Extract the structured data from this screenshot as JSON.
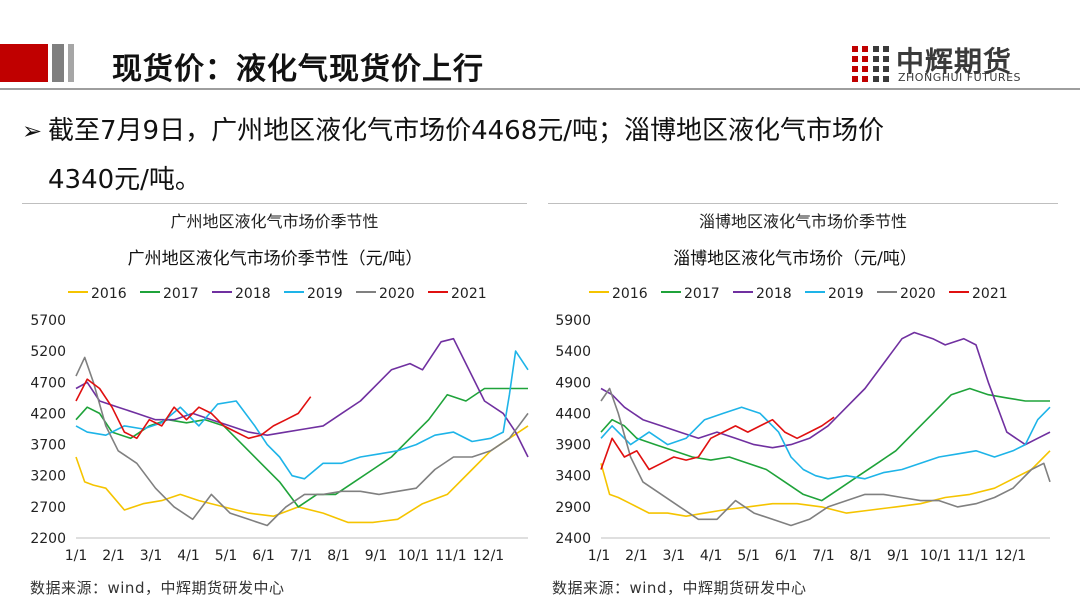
{
  "header": {
    "title": "现货价：液化气现货价上行",
    "logo_cn": "中辉期货",
    "logo_en": "ZHONGHUI FUTURES"
  },
  "bullet": {
    "line1": "截至7月9日，广州地区液化气市场价4468元/吨；淄博地区液化气市场价",
    "line2": "4340元/吨。"
  },
  "panels": [
    {
      "title": "广州地区液化气市场价季节性",
      "source": "数据来源：wind，中辉期货研发中心"
    },
    {
      "title": "淄博地区液化气市场价季节性",
      "source": "数据来源：wind，中辉期货研发中心"
    }
  ],
  "colors": {
    "2016": "#f5c400",
    "2017": "#1fa33a",
    "2018": "#7030a0",
    "2019": "#1eb4e8",
    "2020": "#808080",
    "2021": "#e01010"
  },
  "chart_data": [
    {
      "type": "line",
      "title": "广州地区液化气市场价季节性（元/吨）",
      "ylim": [
        2200,
        5700
      ],
      "yticks": [
        2200,
        2700,
        3200,
        3700,
        4200,
        4700,
        5200,
        5700
      ],
      "xticks": [
        "1/1",
        "2/1",
        "3/1",
        "4/1",
        "5/1",
        "6/1",
        "7/1",
        "8/1",
        "9/1",
        "10/1",
        "11/1",
        "12/1"
      ],
      "series": [
        {
          "name": "2016",
          "x": [
            1,
            8,
            15,
            25,
            40,
            55,
            70,
            85,
            100,
            120,
            140,
            160,
            180,
            200,
            220,
            240,
            260,
            280,
            300,
            320,
            335,
            350,
            365
          ],
          "values": [
            3500,
            3100,
            3050,
            3000,
            2650,
            2750,
            2800,
            2900,
            2800,
            2700,
            2600,
            2550,
            2700,
            2600,
            2450,
            2450,
            2500,
            2750,
            2900,
            3300,
            3600,
            3800,
            4000
          ]
        },
        {
          "name": "2017",
          "x": [
            1,
            10,
            20,
            30,
            45,
            60,
            75,
            90,
            105,
            120,
            135,
            150,
            165,
            180,
            195,
            210,
            225,
            240,
            255,
            270,
            285,
            300,
            315,
            330,
            345,
            365
          ],
          "values": [
            4100,
            4300,
            4200,
            3900,
            3800,
            4000,
            4100,
            4050,
            4100,
            4000,
            3700,
            3400,
            3100,
            2700,
            2900,
            2900,
            3100,
            3300,
            3500,
            3800,
            4100,
            4500,
            4400,
            4600,
            4600,
            4600
          ]
        },
        {
          "name": "2018",
          "x": [
            1,
            10,
            20,
            35,
            50,
            65,
            80,
            95,
            110,
            125,
            140,
            155,
            170,
            185,
            200,
            215,
            230,
            245,
            255,
            270,
            280,
            295,
            305,
            315,
            330,
            345,
            355,
            365
          ],
          "values": [
            4600,
            4700,
            4400,
            4300,
            4200,
            4100,
            4100,
            4200,
            4100,
            4000,
            3900,
            3850,
            3900,
            3950,
            4000,
            4200,
            4400,
            4700,
            4900,
            5000,
            4900,
            5350,
            5400,
            5000,
            4400,
            4200,
            3900,
            3500
          ]
        },
        {
          "name": "2019",
          "x": [
            1,
            10,
            25,
            40,
            55,
            70,
            85,
            100,
            115,
            130,
            145,
            155,
            165,
            175,
            185,
            200,
            215,
            230,
            245,
            260,
            275,
            290,
            305,
            320,
            335,
            345,
            350,
            355,
            365
          ],
          "values": [
            4000,
            3900,
            3850,
            4000,
            3950,
            4050,
            4300,
            4000,
            4350,
            4400,
            4000,
            3700,
            3500,
            3200,
            3150,
            3400,
            3400,
            3500,
            3550,
            3600,
            3700,
            3850,
            3900,
            3750,
            3800,
            3900,
            4500,
            5200,
            4900
          ]
        },
        {
          "name": "2020",
          "x": [
            1,
            8,
            15,
            25,
            35,
            50,
            65,
            80,
            95,
            110,
            125,
            140,
            155,
            170,
            185,
            200,
            215,
            230,
            245,
            260,
            275,
            290,
            305,
            320,
            335,
            350,
            365
          ],
          "values": [
            4800,
            5100,
            4700,
            4000,
            3600,
            3400,
            3000,
            2700,
            2500,
            2900,
            2600,
            2500,
            2400,
            2700,
            2900,
            2900,
            2950,
            2950,
            2900,
            2950,
            3000,
            3300,
            3500,
            3500,
            3600,
            3800,
            4200
          ]
        },
        {
          "name": "2021",
          "x": [
            1,
            10,
            20,
            30,
            40,
            50,
            60,
            70,
            80,
            90,
            100,
            110,
            120,
            130,
            140,
            150,
            160,
            170,
            180,
            190
          ],
          "values": [
            4400,
            4750,
            4600,
            4300,
            3900,
            3800,
            4100,
            4000,
            4300,
            4100,
            4300,
            4200,
            4000,
            3900,
            3800,
            3850,
            4000,
            4100,
            4200,
            4468
          ]
        }
      ]
    },
    {
      "type": "line",
      "title": "淄博地区液化气市场价（元/吨）",
      "ylim": [
        2400,
        5900
      ],
      "yticks": [
        2400,
        2900,
        3400,
        3900,
        4400,
        4900,
        5400,
        5900
      ],
      "xticks": [
        "1/1",
        "2/1",
        "3/1",
        "4/1",
        "5/1",
        "6/1",
        "7/1",
        "8/1",
        "9/1",
        "10/1",
        "11/1",
        "12/1"
      ],
      "series": [
        {
          "name": "2016",
          "x": [
            1,
            8,
            15,
            25,
            40,
            55,
            70,
            85,
            100,
            120,
            140,
            160,
            180,
            200,
            220,
            240,
            260,
            280,
            300,
            320,
            335,
            350,
            365
          ],
          "values": [
            3600,
            3100,
            3050,
            2950,
            2800,
            2800,
            2750,
            2800,
            2850,
            2900,
            2950,
            2950,
            2900,
            2800,
            2850,
            2900,
            2950,
            3050,
            3100,
            3200,
            3350,
            3500,
            3800
          ]
        },
        {
          "name": "2017",
          "x": [
            1,
            10,
            20,
            30,
            45,
            60,
            75,
            90,
            105,
            120,
            135,
            150,
            165,
            180,
            195,
            210,
            225,
            240,
            255,
            270,
            285,
            300,
            315,
            330,
            345,
            365
          ],
          "values": [
            4100,
            4300,
            4200,
            4000,
            3900,
            3800,
            3700,
            3650,
            3700,
            3600,
            3500,
            3300,
            3100,
            3000,
            3200,
            3400,
            3600,
            3800,
            4100,
            4400,
            4700,
            4800,
            4700,
            4650,
            4600,
            4600
          ]
        },
        {
          "name": "2018",
          "x": [
            1,
            10,
            20,
            35,
            50,
            65,
            80,
            95,
            110,
            125,
            140,
            155,
            170,
            185,
            200,
            215,
            230,
            245,
            255,
            270,
            280,
            295,
            305,
            315,
            330,
            345,
            355,
            365
          ],
          "values": [
            4800,
            4700,
            4500,
            4300,
            4200,
            4100,
            4000,
            4100,
            4000,
            3900,
            3850,
            3900,
            4000,
            4200,
            4500,
            4800,
            5200,
            5600,
            5700,
            5600,
            5500,
            5600,
            5500,
            4900,
            4100,
            3900,
            4000,
            4100
          ]
        },
        {
          "name": "2019",
          "x": [
            1,
            10,
            25,
            40,
            55,
            70,
            85,
            100,
            115,
            130,
            145,
            155,
            165,
            175,
            185,
            200,
            215,
            230,
            245,
            260,
            275,
            290,
            305,
            320,
            335,
            345,
            355,
            365
          ],
          "values": [
            4000,
            4200,
            3900,
            4100,
            3900,
            4000,
            4300,
            4400,
            4500,
            4400,
            4100,
            3700,
            3500,
            3400,
            3350,
            3400,
            3350,
            3450,
            3500,
            3600,
            3700,
            3750,
            3800,
            3700,
            3800,
            3900,
            4300,
            4500
          ]
        },
        {
          "name": "2020",
          "x": [
            1,
            8,
            15,
            25,
            35,
            50,
            65,
            80,
            95,
            110,
            125,
            140,
            155,
            170,
            185,
            200,
            215,
            230,
            245,
            260,
            275,
            290,
            305,
            320,
            335,
            350,
            360,
            365
          ],
          "values": [
            4600,
            4800,
            4400,
            3700,
            3300,
            3100,
            2900,
            2700,
            2700,
            3000,
            2800,
            2700,
            2600,
            2700,
            2900,
            3000,
            3100,
            3100,
            3050,
            3000,
            3000,
            2900,
            2950,
            3050,
            3200,
            3500,
            3600,
            3300
          ]
        },
        {
          "name": "2021",
          "x": [
            1,
            10,
            20,
            30,
            40,
            50,
            60,
            70,
            80,
            90,
            100,
            110,
            120,
            130,
            140,
            150,
            160,
            170,
            180,
            190
          ],
          "values": [
            3500,
            4000,
            3700,
            3800,
            3500,
            3600,
            3700,
            3650,
            3700,
            4000,
            4100,
            4200,
            4100,
            4200,
            4300,
            4100,
            4000,
            4100,
            4200,
            4340
          ]
        }
      ]
    }
  ]
}
